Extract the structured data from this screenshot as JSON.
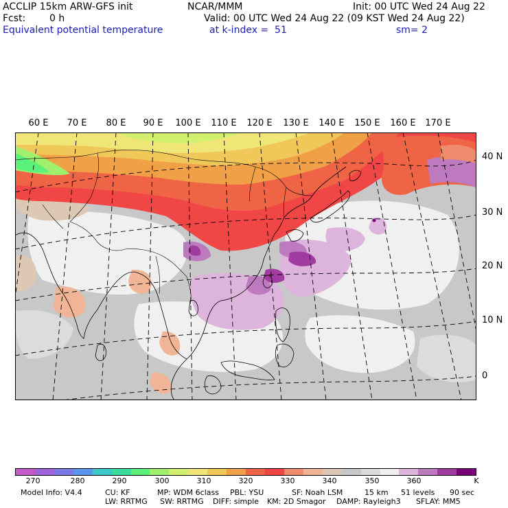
{
  "header": {
    "model_title": "ACCLIP 15km ARW-GFS init",
    "forecast_label": "Fcst:",
    "forecast_value": "0 h",
    "field_name": "Equivalent potential temperature",
    "center": "NCAR/MMM",
    "init": "Init: 00 UTC Wed 24 Aug 22",
    "valid": "Valid: 00 UTC Wed 24 Aug 22 (09 KST Wed 24 Aug 22)",
    "level": "at k-index =  51",
    "smoothing": "sm= 2"
  },
  "map": {
    "region": "Asia / Western Pacific",
    "lon_labels": [
      "60 E",
      "70 E",
      "80 E",
      "90 E",
      "100 E",
      "110 E",
      "120 E",
      "130 E",
      "140 E",
      "150 E",
      "160 E",
      "170 E"
    ],
    "lat_labels": [
      "40 N",
      "30 N",
      "20 N",
      "10 N",
      "0"
    ]
  },
  "colorbar": {
    "colors": [
      "#c45ac8",
      "#a064dc",
      "#7a78e6",
      "#5a96ee",
      "#3cc8c8",
      "#3cdca0",
      "#5af07a",
      "#a0f06e",
      "#d2f06e",
      "#f0e678",
      "#f0c85a",
      "#f0a046",
      "#f06446",
      "#f04646",
      "#f08c6e",
      "#f0b496",
      "#dcc8b4",
      "#c8c8c8",
      "#dcdcdc",
      "#f0f0f0",
      "#dcb4dc",
      "#be7abe",
      "#a03ca0",
      "#780078"
    ],
    "tick_labels": [
      "270",
      "280",
      "290",
      "300",
      "310",
      "320",
      "330",
      "340",
      "350",
      "360"
    ],
    "unit": "K"
  },
  "footer": {
    "line1": [
      "Model Info: V4.4",
      "CU: KF",
      "MP: WDM 6class",
      "PBL: YSU",
      "SF: Noah LSM",
      "15 km",
      "51 levels",
      "90 sec"
    ],
    "line2": [
      "LW: RRTMG",
      "SW: RRTMG",
      "DIFF: simple",
      "KM: 2D Smagor",
      "DAMP: Rayleigh3",
      "SFLAY: MM5"
    ]
  }
}
